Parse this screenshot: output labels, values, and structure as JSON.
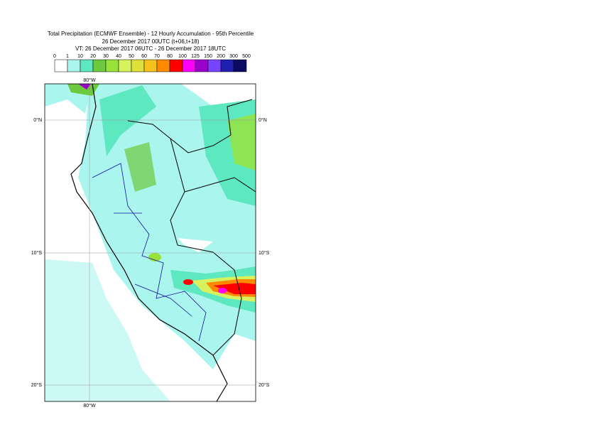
{
  "header": {
    "title": "Total Precipitation (ECMWF Ensemble) - 12 Hourly Accumulation - 95th Percentile",
    "base_time": "26 December 2017 00UTC (t+06,t+18)",
    "valid_time": "VT: 26 December 2017 06UTC - 26 December 2017 18UTC"
  },
  "legend": {
    "labels": [
      "0",
      "1",
      "10",
      "20",
      "30",
      "40",
      "50",
      "60",
      "70",
      "80",
      "100",
      "125",
      "150",
      "200",
      "300",
      "500"
    ],
    "colors": [
      "#ffffff",
      "#aaf5ee",
      "#5ee8c0",
      "#6dc93d",
      "#98e33a",
      "#d7f25d",
      "#e0e03a",
      "#f7c01c",
      "#ff8a00",
      "#ff0000",
      "#ff00ff",
      "#9900cc",
      "#7744ff",
      "#2020b0",
      "#0a0a60"
    ]
  },
  "map": {
    "top_labels": [
      "80°W"
    ],
    "bottom_labels": [
      "80°W"
    ],
    "left_labels": [
      "0°N",
      "10°S",
      "20°S"
    ],
    "right_labels": [
      "0°N",
      "10°S",
      "20°S"
    ]
  }
}
